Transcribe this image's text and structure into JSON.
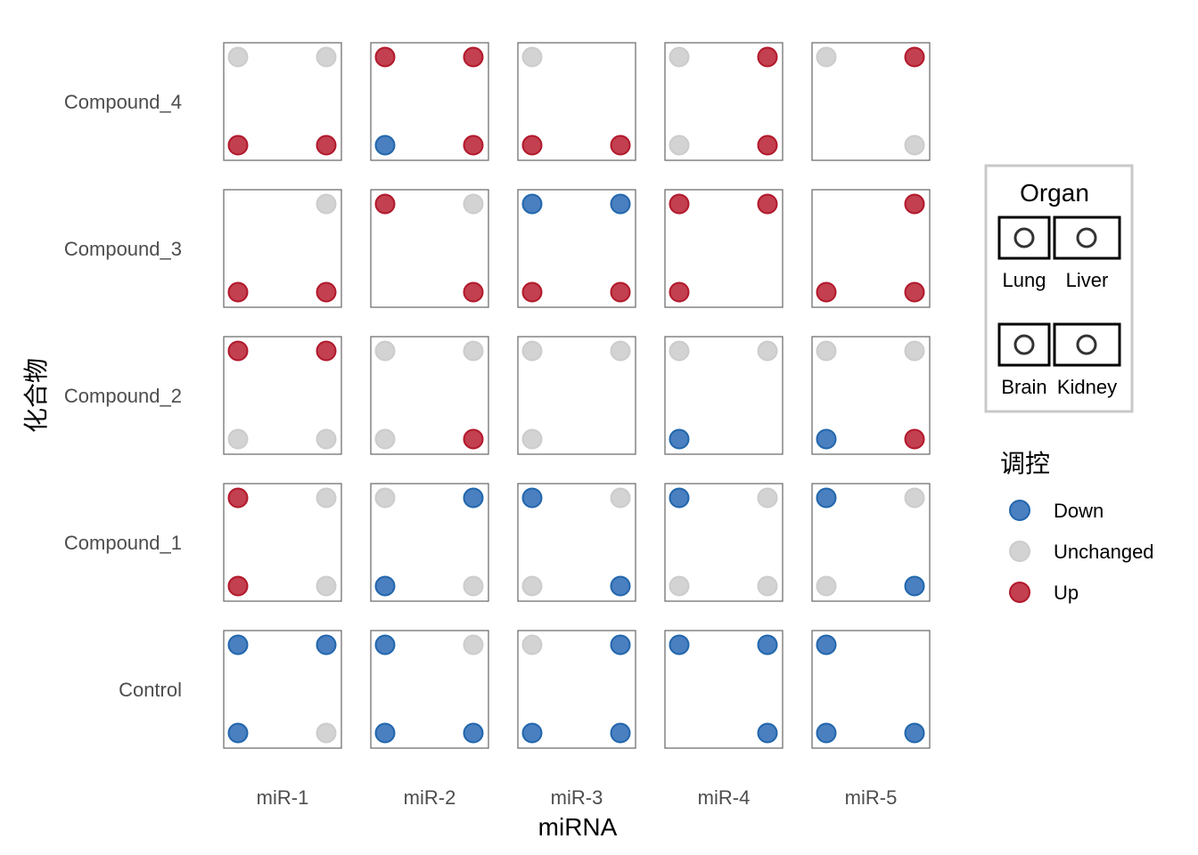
{
  "chart_data": {
    "type": "scatter",
    "title": "",
    "xlabel": "miRNA",
    "ylabel": "化合物",
    "x_categories": [
      "miR-1",
      "miR-2",
      "miR-3",
      "miR-4",
      "miR-5"
    ],
    "y_categories": [
      "Compound_4",
      "Compound_3",
      "Compound_2",
      "Compound_1",
      "Control"
    ],
    "organ_positions": {
      "Lung": "top-left",
      "Liver": "top-right",
      "Brain": "bottom-left",
      "Kidney": "bottom-right"
    },
    "organ_legend": {
      "title": "Organ",
      "items": [
        "Lung",
        "Liver",
        "Brain",
        "Kidney"
      ]
    },
    "regulation_legend": {
      "title": "调控",
      "items": [
        {
          "label": "Down",
          "fill": "#4a7fc0",
          "stroke": "#2166ac"
        },
        {
          "label": "Unchanged",
          "fill": "#d3d3d3",
          "stroke": "#cccccc"
        },
        {
          "label": "Up",
          "fill": "#c2404f",
          "stroke": "#b2182b"
        }
      ]
    },
    "cells": {
      "Compound_4": {
        "miR-1": {
          "Lung": "Unchanged",
          "Liver": "Unchanged",
          "Brain": "Up",
          "Kidney": "Up"
        },
        "miR-2": {
          "Lung": "Up",
          "Liver": "Up",
          "Brain": "Down",
          "Kidney": "Up"
        },
        "miR-3": {
          "Lung": "Unchanged",
          "Liver": null,
          "Brain": "Up",
          "Kidney": "Up"
        },
        "miR-4": {
          "Lung": "Unchanged",
          "Liver": "Up",
          "Brain": "Unchanged",
          "Kidney": "Up"
        },
        "miR-5": {
          "Lung": "Unchanged",
          "Liver": "Up",
          "Brain": null,
          "Kidney": "Unchanged"
        }
      },
      "Compound_3": {
        "miR-1": {
          "Lung": null,
          "Liver": "Unchanged",
          "Brain": "Up",
          "Kidney": "Up"
        },
        "miR-2": {
          "Lung": "Up",
          "Liver": "Unchanged",
          "Brain": null,
          "Kidney": "Up"
        },
        "miR-3": {
          "Lung": "Down",
          "Liver": "Down",
          "Brain": "Up",
          "Kidney": "Up"
        },
        "miR-4": {
          "Lung": "Up",
          "Liver": "Up",
          "Brain": "Up",
          "Kidney": null
        },
        "miR-5": {
          "Lung": null,
          "Liver": "Up",
          "Brain": "Up",
          "Kidney": "Up"
        }
      },
      "Compound_2": {
        "miR-1": {
          "Lung": "Up",
          "Liver": "Up",
          "Brain": "Unchanged",
          "Kidney": "Unchanged"
        },
        "miR-2": {
          "Lung": "Unchanged",
          "Liver": "Unchanged",
          "Brain": "Unchanged",
          "Kidney": "Up"
        },
        "miR-3": {
          "Lung": "Unchanged",
          "Liver": "Unchanged",
          "Brain": "Unchanged",
          "Kidney": null
        },
        "miR-4": {
          "Lung": "Unchanged",
          "Liver": "Unchanged",
          "Brain": "Down",
          "Kidney": null
        },
        "miR-5": {
          "Lung": "Unchanged",
          "Liver": "Unchanged",
          "Brain": "Down",
          "Kidney": "Up"
        }
      },
      "Compound_1": {
        "miR-1": {
          "Lung": "Up",
          "Liver": "Unchanged",
          "Brain": "Up",
          "Kidney": "Unchanged"
        },
        "miR-2": {
          "Lung": "Unchanged",
          "Liver": "Down",
          "Brain": "Down",
          "Kidney": "Unchanged"
        },
        "miR-3": {
          "Lung": "Down",
          "Liver": "Unchanged",
          "Brain": "Unchanged",
          "Kidney": "Down"
        },
        "miR-4": {
          "Lung": "Down",
          "Liver": "Unchanged",
          "Brain": "Unchanged",
          "Kidney": "Unchanged"
        },
        "miR-5": {
          "Lung": "Down",
          "Liver": "Unchanged",
          "Brain": "Unchanged",
          "Kidney": "Down"
        }
      },
      "Control": {
        "miR-1": {
          "Lung": "Down",
          "Liver": "Down",
          "Brain": "Down",
          "Kidney": "Unchanged"
        },
        "miR-2": {
          "Lung": "Down",
          "Liver": "Unchanged",
          "Brain": "Down",
          "Kidney": "Down"
        },
        "miR-3": {
          "Lung": "Unchanged",
          "Liver": "Down",
          "Brain": "Down",
          "Kidney": "Down"
        },
        "miR-4": {
          "Lung": "Down",
          "Liver": "Down",
          "Brain": null,
          "Kidney": "Down"
        },
        "miR-5": {
          "Lung": "Down",
          "Liver": null,
          "Brain": "Down",
          "Kidney": "Down"
        }
      }
    }
  }
}
